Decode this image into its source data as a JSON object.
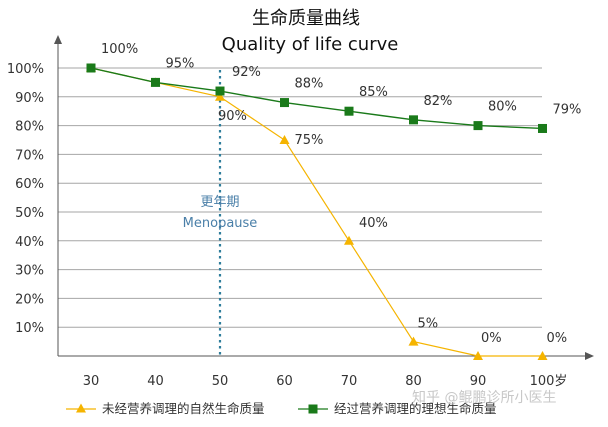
{
  "chart_data": {
    "type": "line",
    "title": "生命质量曲线",
    "subtitle": "Quality of life curve",
    "x": [
      30,
      40,
      50,
      60,
      70,
      80,
      90,
      100
    ],
    "x_tick_labels": [
      "30",
      "40",
      "50",
      "60",
      "70",
      "80",
      "90",
      "100岁"
    ],
    "y_tick_labels": [
      "10%",
      "20%",
      "30%",
      "40%",
      "50%",
      "60%",
      "70%",
      "80%",
      "90%",
      "100%"
    ],
    "ylim": [
      0,
      100
    ],
    "y_ticks": [
      10,
      20,
      30,
      40,
      50,
      60,
      70,
      80,
      90,
      100
    ],
    "grid": "horizontal",
    "legend_position": "bottom",
    "series": [
      {
        "name": "未经营养调理的自然生命质量",
        "marker": "triangle",
        "color": "#f5b400",
        "points": [
          [
            30,
            100
          ],
          [
            40,
            95
          ],
          [
            50,
            90
          ],
          [
            60,
            75
          ],
          [
            70,
            40
          ],
          [
            80,
            5
          ],
          [
            90,
            0
          ],
          [
            100,
            0
          ]
        ],
        "labels": [
          "90%",
          "75%",
          "40%",
          "5%",
          "0%",
          "0%"
        ],
        "label_indices": [
          2,
          3,
          4,
          5,
          6,
          7
        ]
      },
      {
        "name": "经过营养调理的理想生命质量",
        "marker": "square",
        "color": "#1a7a1a",
        "points": [
          [
            30,
            100
          ],
          [
            40,
            95
          ],
          [
            50,
            92
          ],
          [
            60,
            88
          ],
          [
            70,
            85
          ],
          [
            80,
            82
          ],
          [
            90,
            80
          ],
          [
            100,
            79
          ]
        ],
        "labels": [
          "100%",
          "95%",
          "92%",
          "88%",
          "85%",
          "82%",
          "80%",
          "79%"
        ],
        "label_indices": [
          0,
          1,
          2,
          3,
          4,
          5,
          6,
          7
        ]
      }
    ],
    "annotation": {
      "x": 50,
      "line_style": "dotted",
      "color": "#2e7d9b",
      "label_cn": "更年期",
      "label_en": "Menopause"
    }
  },
  "watermark": "知乎 @鲲鹏诊所小医生"
}
